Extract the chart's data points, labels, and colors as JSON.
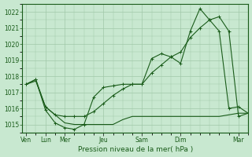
{
  "xlabel": "Pression niveau de la mer( hPa )",
  "background_color": "#c8e8d0",
  "grid_color": "#a0c8a8",
  "line_color": "#1a5c1a",
  "ylim": [
    1014.5,
    1022.5
  ],
  "yticks": [
    1015,
    1016,
    1017,
    1018,
    1019,
    1020,
    1021,
    1022
  ],
  "day_positions": [
    0,
    1,
    2,
    4,
    6,
    8,
    11
  ],
  "day_labels": [
    "Ven",
    "Lun",
    "Mer",
    "Jeu",
    "Sam",
    "Dim",
    "Mar"
  ],
  "xlim": [
    -0.2,
    11.5
  ],
  "series1_x": [
    0,
    0.5,
    1.0,
    1.5,
    2.0,
    2.5,
    3.0,
    3.5,
    4.0,
    4.5,
    5.0,
    5.5,
    6.0,
    6.5,
    7.0,
    7.5,
    8.0,
    8.5,
    9.0,
    9.5,
    10.0,
    10.5,
    11.0,
    11.5
  ],
  "series1_y": [
    1017.5,
    1017.8,
    1015.9,
    1015.1,
    1014.8,
    1014.7,
    1015.0,
    1016.7,
    1017.3,
    1017.4,
    1017.5,
    1017.5,
    1017.5,
    1019.1,
    1019.4,
    1019.2,
    1018.8,
    1020.8,
    1022.2,
    1021.5,
    1020.8,
    1016.0,
    1016.1,
    1015.7
  ],
  "series2_x": [
    0,
    0.5,
    1.0,
    1.5,
    2.0,
    2.5,
    3.0,
    3.5,
    4.0,
    4.5,
    5.0,
    5.5,
    6.0,
    6.5,
    7.0,
    7.5,
    8.0,
    8.5,
    9.0,
    9.5,
    10.0,
    10.5,
    11.0,
    11.5
  ],
  "series2_y": [
    1017.5,
    1017.8,
    1016.1,
    1015.6,
    1015.5,
    1015.5,
    1015.5,
    1015.8,
    1016.3,
    1016.8,
    1017.2,
    1017.5,
    1017.5,
    1018.2,
    1018.7,
    1019.2,
    1019.5,
    1020.4,
    1021.0,
    1021.5,
    1021.7,
    1020.8,
    1015.5,
    1015.7
  ],
  "series3_x": [
    0,
    0.5,
    1.0,
    1.5,
    2.0,
    2.5,
    3.0,
    3.5,
    4.0,
    4.5,
    5.0,
    5.5,
    6.0,
    6.5,
    7.0,
    7.5,
    8.0,
    8.5,
    9.0,
    9.5,
    10.0,
    10.5,
    11.0,
    11.5
  ],
  "series3_y": [
    1017.5,
    1017.7,
    1016.1,
    1015.6,
    1015.1,
    1015.0,
    1015.0,
    1015.0,
    1015.0,
    1015.0,
    1015.3,
    1015.5,
    1015.5,
    1015.5,
    1015.5,
    1015.5,
    1015.5,
    1015.5,
    1015.5,
    1015.5,
    1015.5,
    1015.6,
    1015.7,
    1015.7
  ]
}
